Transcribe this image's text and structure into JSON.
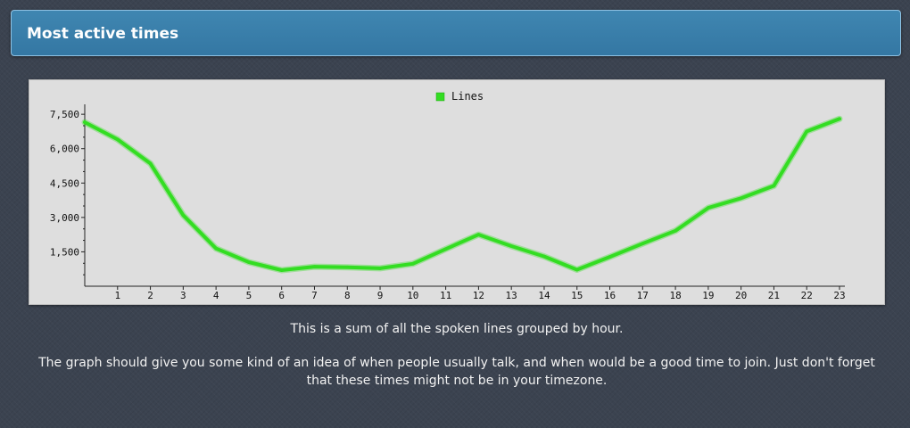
{
  "section": {
    "title": "Most active times"
  },
  "chart_data": {
    "type": "line",
    "x": [
      0,
      1,
      2,
      3,
      4,
      5,
      6,
      7,
      8,
      9,
      10,
      11,
      12,
      13,
      14,
      15,
      16,
      17,
      18,
      19,
      20,
      21,
      22,
      23
    ],
    "series": [
      {
        "name": "Lines",
        "color": "#33dd22",
        "values": [
          7150,
          6400,
          5350,
          3100,
          1650,
          1050,
          700,
          850,
          830,
          780,
          980,
          1620,
          2250,
          1750,
          1300,
          720,
          1280,
          1860,
          2420,
          3420,
          3840,
          4380,
          6750,
          7300
        ]
      }
    ],
    "x_tick_labels": [
      "1",
      "2",
      "3",
      "4",
      "5",
      "6",
      "7",
      "8",
      "9",
      "10",
      "11",
      "12",
      "13",
      "14",
      "15",
      "16",
      "17",
      "18",
      "19",
      "20",
      "21",
      "22",
      "23"
    ],
    "y_ticks": [
      1500,
      3000,
      4500,
      6000,
      7500
    ],
    "y_tick_labels": [
      "1,500",
      "3,000",
      "4,500",
      "6,000",
      "7,500"
    ],
    "ylim": [
      0,
      7700
    ],
    "xlim": [
      0,
      23
    ],
    "legend_position": "top-center",
    "grid": false,
    "background": "#dedede"
  },
  "description": {
    "line1": "This is a sum of all the spoken lines grouped by hour.",
    "line2": "The graph should give you some kind of an idea of when people usually talk, and when would be a good time to join. Just don't forget that these times might not be in your timezone."
  }
}
